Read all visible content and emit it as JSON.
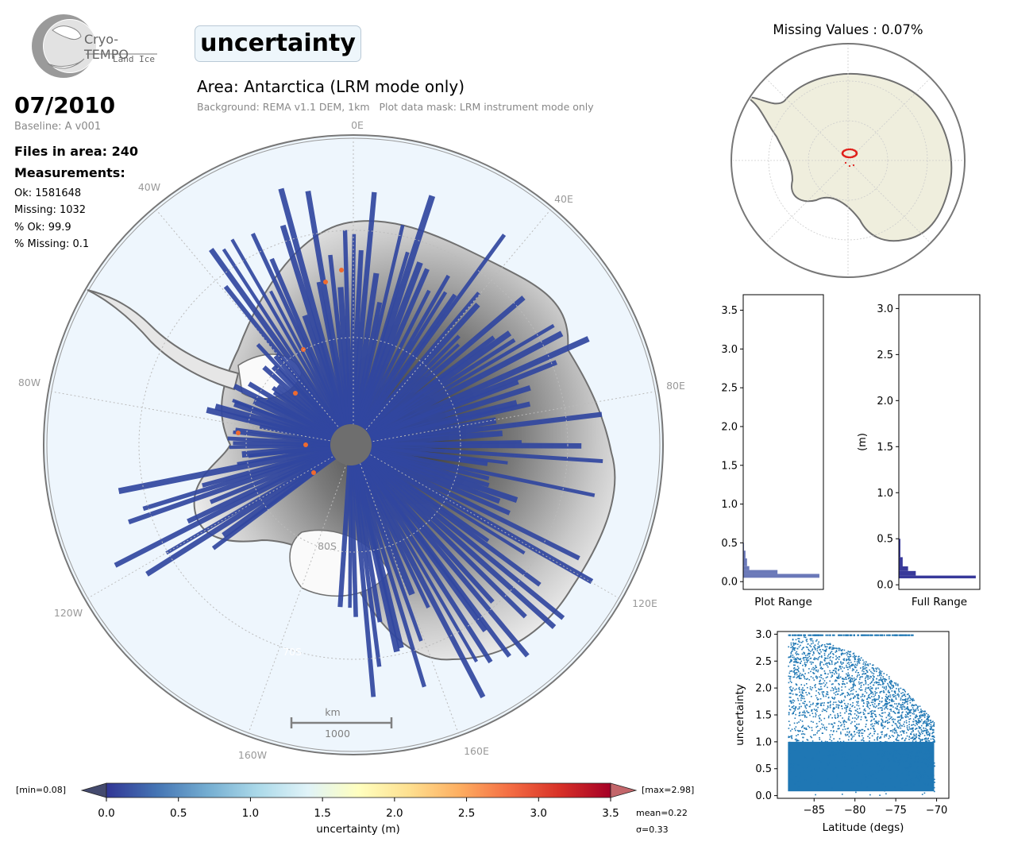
{
  "header": {
    "logo_name": "Cryo-TEMPO",
    "logo_sub": "Land Ice",
    "parameter": "uncertainty",
    "area_title": "Area: Antarctica (LRM mode only)",
    "area_subtitle": "Background: REMA v1.1 DEM, 1km   Plot data mask: LRM instrument mode only"
  },
  "stats": {
    "date": "07/2010",
    "baseline": "Baseline: A v001",
    "files": "Files in area: 240",
    "measurements_heading": "Measurements:",
    "ok": "Ok: 1581648",
    "missing": "Missing: 1032",
    "pct_ok": "% Ok: 99.9",
    "pct_missing": "% Missing: 0.1"
  },
  "map": {
    "lon_labels": [
      "0E",
      "40E",
      "80E",
      "120E",
      "160E",
      "160W",
      "120W",
      "80W",
      "40W"
    ],
    "lat_labels": [
      "80S",
      "70S"
    ],
    "scale_unit": "km",
    "scale_value": "1000",
    "ocean_color": "#eef6fd",
    "track_color": "#3146a0"
  },
  "missing_panel": {
    "title": "Missing Values : 0.07%",
    "land_color": "#efeedd"
  },
  "colorbar": {
    "min_label": "[min=0.08]",
    "max_label": "[max=2.98]",
    "ticks": [
      "0.0",
      "0.5",
      "1.0",
      "1.5",
      "2.0",
      "2.5",
      "3.0",
      "3.5"
    ],
    "label": "uncertainty (m)",
    "mean": "mean=0.22",
    "sigma": "σ=0.33",
    "range": [
      0,
      3.5
    ]
  },
  "chart_data": [
    {
      "type": "bar",
      "orientation": "horizontal",
      "xlabel": "Plot Range",
      "ylabel": "",
      "ylim": [
        -0.1,
        3.7
      ],
      "yticks": [
        "0.0",
        "0.5",
        "1.0",
        "1.5",
        "2.0",
        "2.5",
        "3.0",
        "3.5"
      ],
      "bins": [
        [
          0.05,
          0.1,
          1.0
        ],
        [
          0.1,
          0.15,
          0.45
        ],
        [
          0.15,
          0.2,
          0.08
        ],
        [
          0.2,
          0.3,
          0.05
        ],
        [
          0.3,
          0.4,
          0.03
        ],
        [
          0.4,
          0.5,
          0.01
        ]
      ],
      "color": "#6b79b9"
    },
    {
      "type": "bar",
      "orientation": "horizontal",
      "xlabel": "Full Range",
      "ylabel": "(m)",
      "ylim": [
        -0.05,
        3.15
      ],
      "yticks": [
        "0.0",
        "0.5",
        "1.0",
        "1.5",
        "2.0",
        "2.5",
        "3.0"
      ],
      "bins": [
        [
          0.07,
          0.1,
          1.0
        ],
        [
          0.1,
          0.15,
          0.22
        ],
        [
          0.15,
          0.2,
          0.12
        ],
        [
          0.2,
          0.3,
          0.05
        ],
        [
          0.3,
          0.5,
          0.02
        ]
      ],
      "color": "#38399a"
    },
    {
      "type": "scatter",
      "xlabel": "Latitude (degs)",
      "ylabel": "uncertainty",
      "xlim": [
        -89.5,
        -68.5
      ],
      "ylim": [
        -0.05,
        3.05
      ],
      "xticks": [
        "−85",
        "−80",
        "−75",
        "−70"
      ],
      "xtick_values": [
        -85,
        -80,
        -75,
        -70
      ],
      "yticks": [
        "0.0",
        "0.5",
        "1.0",
        "1.5",
        "2.0",
        "2.5",
        "3.0"
      ],
      "x_range": [
        -88.2,
        -70.3
      ],
      "y_range": [
        0.08,
        2.98
      ],
      "color": "#1f77b4"
    }
  ]
}
